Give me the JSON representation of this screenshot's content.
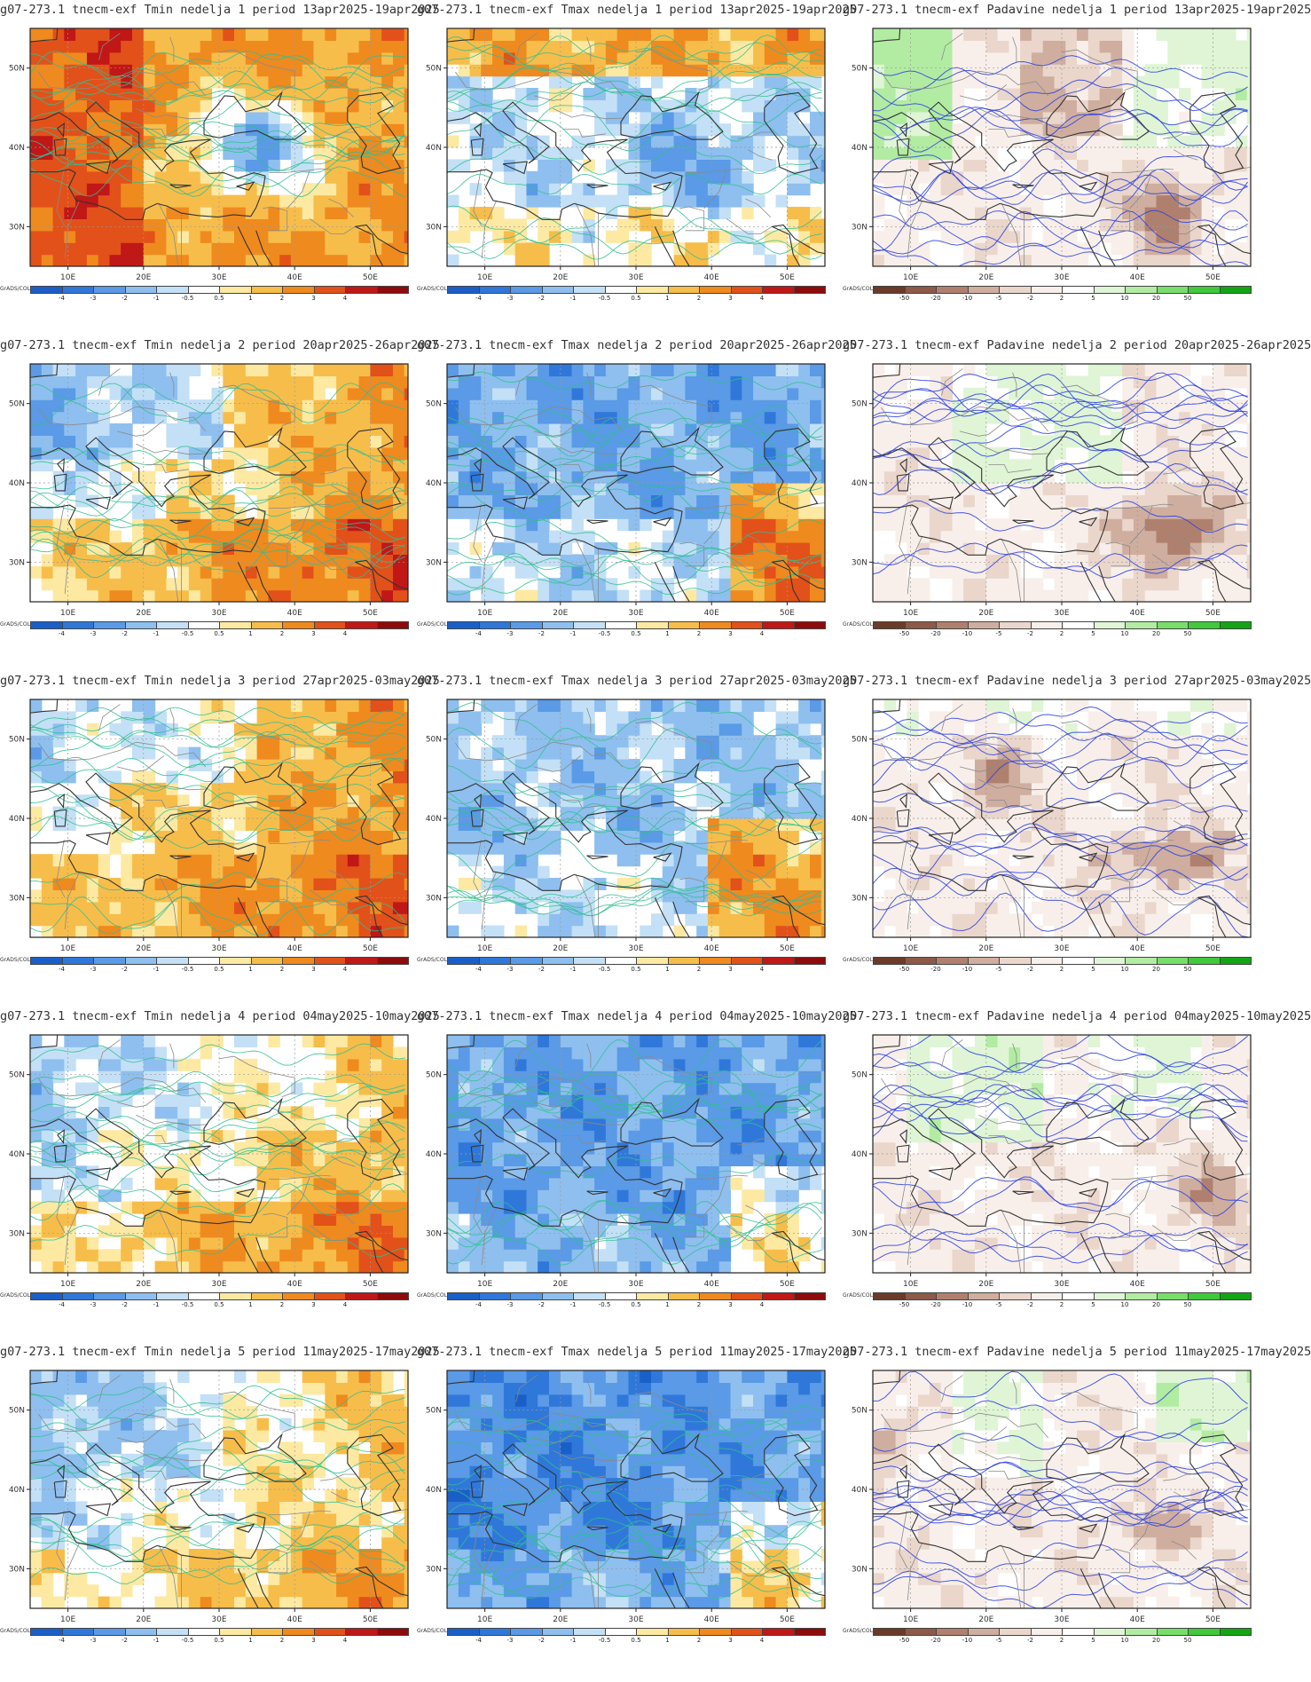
{
  "panels": [
    {
      "id": "p11",
      "title": "g07-273.1 tnecm-exf Tmin nedelja 1 period 13apr2025-19apr2025",
      "var": "tmin",
      "week": 1,
      "seed": 11
    },
    {
      "id": "p12",
      "title": "g07-273.1 tnecm-exf Tmax nedelja 1 period 13apr2025-19apr2025",
      "var": "tmax",
      "week": 1,
      "seed": 12
    },
    {
      "id": "p13",
      "title": "g07-273.1 tnecm-exf Padavine nedelja 1 period 13apr2025-19apr2025",
      "var": "padavine",
      "week": 1,
      "seed": 13
    },
    {
      "id": "p21",
      "title": "g07-273.1 tnecm-exf Tmin nedelja 2 period 20apr2025-26apr2025",
      "var": "tmin",
      "week": 2,
      "seed": 21
    },
    {
      "id": "p22",
      "title": "g07-273.1 tnecm-exf Tmax nedelja 2 period 20apr2025-26apr2025",
      "var": "tmax",
      "week": 2,
      "seed": 22
    },
    {
      "id": "p23",
      "title": "g07-273.1 tnecm-exf Padavine nedelja 2 period 20apr2025-26apr2025",
      "var": "padavine",
      "week": 2,
      "seed": 23
    },
    {
      "id": "p31",
      "title": "g07-273.1 tnecm-exf Tmin nedelja 3 period 27apr2025-03may2025",
      "var": "tmin",
      "week": 3,
      "seed": 31
    },
    {
      "id": "p32",
      "title": "g07-273.1 tnecm-exf Tmax nedelja 3 period 27apr2025-03may2025",
      "var": "tmax",
      "week": 3,
      "seed": 32
    },
    {
      "id": "p33",
      "title": "g07-273.1 tnecm-exf Padavine nedelja 3 period 27apr2025-03may2025",
      "var": "padavine",
      "week": 3,
      "seed": 33
    },
    {
      "id": "p41",
      "title": "g07-273.1 tnecm-exf Tmin nedelja 4 period 04may2025-10may2025",
      "var": "tmin",
      "week": 4,
      "seed": 41
    },
    {
      "id": "p42",
      "title": "g07-273.1 tnecm-exf Tmax nedelja 4 period 04may2025-10may2025",
      "var": "tmax",
      "week": 4,
      "seed": 42
    },
    {
      "id": "p43",
      "title": "g07-273.1 tnecm-exf Padavine nedelja 4 period 04may2025-10may2025",
      "var": "padavine",
      "week": 4,
      "seed": 43
    },
    {
      "id": "p51",
      "title": "g07-273.1 tnecm-exf Tmin nedelja 5 period 11may2025-17may2025",
      "var": "tmin",
      "week": 5,
      "seed": 51
    },
    {
      "id": "p52",
      "title": "g07-273.1 tnecm-exf Tmax nedelja 5 period 11may2025-17may2025",
      "var": "tmax",
      "week": 5,
      "seed": 52
    },
    {
      "id": "p53",
      "title": "g07-273.1 tnecm-exf Padavine nedelja 5 period 11may2025-17may2025",
      "var": "padavine",
      "week": 5,
      "seed": 53
    }
  ],
  "axes": {
    "lon_ticks": [
      "10E",
      "20E",
      "30E",
      "40E",
      "50E"
    ],
    "lat_ticks": [
      "50N",
      "40N",
      "30N"
    ],
    "lon_range": [
      5,
      55
    ],
    "lat_range": [
      25,
      55
    ]
  },
  "colorbar_brand": "GrADS/COLA",
  "colorbars": {
    "temperature": {
      "labels": [
        "-4",
        "-3",
        "-2",
        "-1",
        "-0.5",
        "0.5",
        "1",
        "2",
        "3",
        "4"
      ],
      "colors": [
        "#1a5fc8",
        "#2f78da",
        "#5a9ae6",
        "#8ebfef",
        "#c3e0f6",
        "#ffffff",
        "#fde9a2",
        "#f7bd4a",
        "#ef8a1f",
        "#e2511a",
        "#c01717",
        "#8e0b0b"
      ]
    },
    "padavine": {
      "labels": [
        "-50",
        "-20",
        "-10",
        "-5",
        "-2",
        "2",
        "5",
        "10",
        "20",
        "50"
      ],
      "colors": [
        "#6b3b2a",
        "#8d5a47",
        "#b0806f",
        "#cfae9f",
        "#ead6cb",
        "#f8efea",
        "#ffffff",
        "#dff5d5",
        "#b2eca2",
        "#78de6a",
        "#3fc93b",
        "#13a514"
      ]
    }
  }
}
